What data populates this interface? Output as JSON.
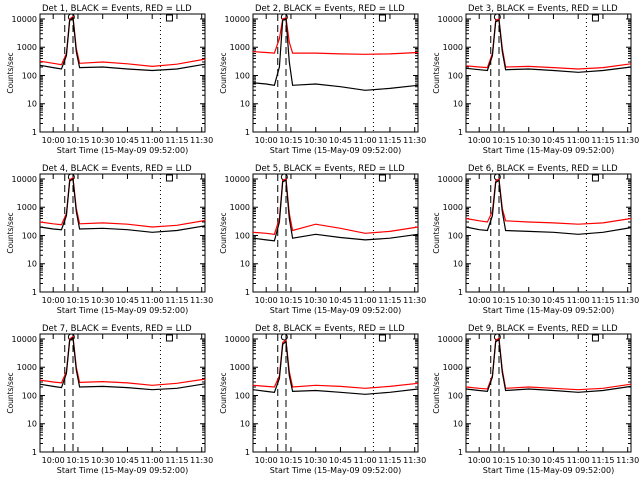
{
  "chart_data": [
    {
      "type": "line",
      "title": "Det 1, BLACK = Events, RED = LLD",
      "xlabel": "Start Time (15-May-09 09:52:00)",
      "ylabel": "Counts/sec",
      "xlim": [
        "09:52",
        "11:32"
      ],
      "ylim": [
        1,
        15000
      ],
      "yscale": "log",
      "x_ticks": [
        "10:00",
        "10:15",
        "10:30",
        "10:45",
        "11:00",
        "11:15",
        "11:30"
      ],
      "y_ticks": [
        "1",
        "10",
        "100",
        "1000",
        "10000"
      ],
      "vlines": {
        "dashed": [
          "10:07",
          "10:12"
        ],
        "dotted": [
          "11:05"
        ]
      },
      "series": [
        {
          "name": "RED = LLD",
          "color": "#ff0000",
          "x": [
            "09:52",
            "10:00",
            "10:05",
            "10:08",
            "10:10",
            "10:12",
            "10:14",
            "10:16",
            "10:30",
            "10:45",
            "11:00",
            "11:15",
            "11:32"
          ],
          "values": [
            320,
            270,
            240,
            600,
            10000,
            12000,
            900,
            270,
            300,
            260,
            210,
            250,
            380
          ]
        },
        {
          "name": "BLACK = Events",
          "color": "#000000",
          "x": [
            "09:52",
            "10:00",
            "10:05",
            "10:08",
            "10:10",
            "10:12",
            "10:14",
            "10:16",
            "10:30",
            "10:45",
            "11:00",
            "11:15",
            "11:32"
          ],
          "values": [
            230,
            190,
            170,
            500,
            9000,
            11000,
            700,
            190,
            200,
            170,
            150,
            170,
            250
          ]
        }
      ]
    },
    {
      "type": "line",
      "title": "Det 2, BLACK = Events, RED = LLD",
      "xlabel": "Start Time (15-May-09 09:52:00)",
      "ylabel": "Counts/sec",
      "xlim": [
        "09:52",
        "11:32"
      ],
      "ylim": [
        1,
        15000
      ],
      "yscale": "log",
      "x_ticks": [
        "10:00",
        "10:15",
        "10:30",
        "10:45",
        "11:00",
        "11:15",
        "11:30"
      ],
      "y_ticks": [
        "1",
        "10",
        "100",
        "1000",
        "10000"
      ],
      "vlines": {
        "dashed": [
          "10:07",
          "10:12"
        ],
        "dotted": [
          "11:05"
        ]
      },
      "series": [
        {
          "name": "RED = LLD",
          "color": "#ff0000",
          "x": [
            "09:52",
            "10:00",
            "10:05",
            "10:08",
            "10:10",
            "10:12",
            "10:14",
            "10:16",
            "10:30",
            "10:45",
            "11:00",
            "11:15",
            "11:32"
          ],
          "values": [
            700,
            650,
            620,
            2000,
            10000,
            11000,
            1500,
            620,
            620,
            580,
            560,
            580,
            650
          ]
        },
        {
          "name": "BLACK = Events",
          "color": "#000000",
          "x": [
            "09:52",
            "10:00",
            "10:05",
            "10:08",
            "10:10",
            "10:12",
            "10:14",
            "10:16",
            "10:30",
            "10:45",
            "11:00",
            "11:15",
            "11:32"
          ],
          "values": [
            55,
            50,
            45,
            200,
            9000,
            10000,
            300,
            45,
            50,
            40,
            30,
            35,
            45
          ]
        }
      ]
    },
    {
      "type": "line",
      "title": "Det 3, BLACK = Events, RED = LLD",
      "xlabel": "Start Time (15-May-09 09:52:00)",
      "ylabel": "Counts/sec",
      "xlim": [
        "09:52",
        "11:32"
      ],
      "ylim": [
        1,
        15000
      ],
      "yscale": "log",
      "x_ticks": [
        "10:00",
        "10:15",
        "10:30",
        "10:45",
        "11:00",
        "11:15",
        "11:30"
      ],
      "y_ticks": [
        "1",
        "10",
        "100",
        "1000",
        "10000"
      ],
      "vlines": {
        "dashed": [
          "10:07",
          "10:12"
        ],
        "dotted": [
          "11:05"
        ]
      },
      "series": [
        {
          "name": "RED = LLD",
          "color": "#ff0000",
          "x": [
            "09:52",
            "10:00",
            "10:05",
            "10:08",
            "10:10",
            "10:12",
            "10:14",
            "10:16",
            "10:30",
            "10:45",
            "11:00",
            "11:15",
            "11:32"
          ],
          "values": [
            220,
            200,
            190,
            600,
            9000,
            10000,
            900,
            200,
            210,
            190,
            170,
            190,
            260
          ]
        },
        {
          "name": "BLACK = Events",
          "color": "#000000",
          "x": [
            "09:52",
            "10:00",
            "10:05",
            "10:08",
            "10:10",
            "10:12",
            "10:14",
            "10:16",
            "10:30",
            "10:45",
            "11:00",
            "11:15",
            "11:32"
          ],
          "values": [
            180,
            160,
            150,
            500,
            8000,
            9000,
            700,
            160,
            170,
            150,
            130,
            150,
            200
          ]
        }
      ]
    },
    {
      "type": "line",
      "title": "Det 4, BLACK = Events, RED = LLD",
      "xlabel": "Start Time (15-May-09 09:52:00)",
      "ylabel": "Counts/sec",
      "xlim": [
        "09:52",
        "11:32"
      ],
      "ylim": [
        1,
        15000
      ],
      "yscale": "log",
      "x_ticks": [
        "10:00",
        "10:15",
        "10:30",
        "10:45",
        "11:00",
        "11:15",
        "11:30"
      ],
      "y_ticks": [
        "1",
        "10",
        "100",
        "1000",
        "10000"
      ],
      "vlines": {
        "dashed": [
          "10:07",
          "10:12"
        ],
        "dotted": [
          "11:05"
        ]
      },
      "series": [
        {
          "name": "RED = LLD",
          "color": "#ff0000",
          "x": [
            "09:52",
            "10:00",
            "10:05",
            "10:08",
            "10:10",
            "10:12",
            "10:14",
            "10:16",
            "10:30",
            "10:45",
            "11:00",
            "11:15",
            "11:32"
          ],
          "values": [
            300,
            260,
            240,
            600,
            9500,
            11000,
            900,
            260,
            280,
            250,
            200,
            230,
            340
          ]
        },
        {
          "name": "BLACK = Events",
          "color": "#000000",
          "x": [
            "09:52",
            "10:00",
            "10:05",
            "10:08",
            "10:10",
            "10:12",
            "10:14",
            "10:16",
            "10:30",
            "10:45",
            "11:00",
            "11:15",
            "11:32"
          ],
          "values": [
            200,
            170,
            160,
            500,
            8500,
            10000,
            700,
            170,
            180,
            160,
            130,
            150,
            220
          ]
        }
      ]
    },
    {
      "type": "line",
      "title": "Det 5, BLACK = Events, RED = LLD",
      "xlabel": "Start Time (15-May-09 09:52:00)",
      "ylabel": "Counts/sec",
      "xlim": [
        "09:52",
        "11:32"
      ],
      "ylim": [
        1,
        15000
      ],
      "yscale": "log",
      "x_ticks": [
        "10:00",
        "10:15",
        "10:30",
        "10:45",
        "11:00",
        "11:15",
        "11:30"
      ],
      "y_ticks": [
        "1",
        "10",
        "100",
        "1000",
        "10000"
      ],
      "vlines": {
        "dashed": [
          "10:07",
          "10:12"
        ],
        "dotted": [
          "11:05"
        ]
      },
      "series": [
        {
          "name": "RED = LLD",
          "color": "#ff0000",
          "x": [
            "09:52",
            "10:00",
            "10:05",
            "10:08",
            "10:10",
            "10:12",
            "10:14",
            "10:16",
            "10:30",
            "10:45",
            "11:00",
            "11:15",
            "11:32"
          ],
          "values": [
            130,
            120,
            110,
            400,
            9000,
            10000,
            600,
            150,
            250,
            180,
            120,
            140,
            200
          ]
        },
        {
          "name": "BLACK = Events",
          "color": "#000000",
          "x": [
            "09:52",
            "10:00",
            "10:05",
            "10:08",
            "10:10",
            "10:12",
            "10:14",
            "10:16",
            "10:30",
            "10:45",
            "11:00",
            "11:15",
            "11:32"
          ],
          "values": [
            80,
            70,
            65,
            300,
            8000,
            9000,
            400,
            80,
            110,
            85,
            70,
            80,
            110
          ]
        }
      ]
    },
    {
      "type": "line",
      "title": "Det 6, BLACK = Events, RED = LLD",
      "xlabel": "Start Time (15-May-09 09:52:00)",
      "ylabel": "Counts/sec",
      "xlim": [
        "09:52",
        "11:32"
      ],
      "ylim": [
        1,
        15000
      ],
      "yscale": "log",
      "x_ticks": [
        "10:00",
        "10:15",
        "10:30",
        "10:45",
        "11:00",
        "11:15",
        "11:30"
      ],
      "y_ticks": [
        "1",
        "10",
        "100",
        "1000",
        "10000"
      ],
      "vlines": {
        "dashed": [
          "10:07",
          "10:12"
        ],
        "dotted": [
          "11:05"
        ]
      },
      "series": [
        {
          "name": "RED = LLD",
          "color": "#ff0000",
          "x": [
            "09:52",
            "10:00",
            "10:05",
            "10:08",
            "10:10",
            "10:12",
            "10:14",
            "10:16",
            "10:30",
            "10:45",
            "11:00",
            "11:15",
            "11:32"
          ],
          "values": [
            400,
            330,
            300,
            700,
            8500,
            10000,
            900,
            330,
            300,
            280,
            250,
            280,
            400
          ]
        },
        {
          "name": "BLACK = Events",
          "color": "#000000",
          "x": [
            "09:52",
            "10:00",
            "10:05",
            "10:08",
            "10:10",
            "10:12",
            "10:14",
            "10:16",
            "10:30",
            "10:45",
            "11:00",
            "11:15",
            "11:32"
          ],
          "values": [
            200,
            160,
            150,
            500,
            7500,
            9000,
            700,
            150,
            140,
            130,
            110,
            130,
            190
          ]
        }
      ]
    },
    {
      "type": "line",
      "title": "Det 7, BLACK = Events, RED = LLD",
      "xlabel": "Start Time (15-May-09 09:52:00)",
      "ylabel": "Counts/sec",
      "xlim": [
        "09:52",
        "11:32"
      ],
      "ylim": [
        1,
        15000
      ],
      "yscale": "log",
      "x_ticks": [
        "10:00",
        "10:15",
        "10:30",
        "10:45",
        "11:00",
        "11:15",
        "11:30"
      ],
      "y_ticks": [
        "1",
        "10",
        "100",
        "1000",
        "10000"
      ],
      "vlines": {
        "dashed": [
          "10:07",
          "10:12"
        ],
        "dotted": [
          "11:05"
        ]
      },
      "series": [
        {
          "name": "RED = LLD",
          "color": "#ff0000",
          "x": [
            "09:52",
            "10:00",
            "10:05",
            "10:08",
            "10:10",
            "10:12",
            "10:14",
            "10:16",
            "10:30",
            "10:45",
            "11:00",
            "11:15",
            "11:32"
          ],
          "values": [
            350,
            300,
            280,
            700,
            10000,
            12000,
            1000,
            290,
            310,
            280,
            230,
            270,
            380
          ]
        },
        {
          "name": "BLACK = Events",
          "color": "#000000",
          "x": [
            "09:52",
            "10:00",
            "10:05",
            "10:08",
            "10:10",
            "10:12",
            "10:14",
            "10:16",
            "10:30",
            "10:45",
            "11:00",
            "11:15",
            "11:32"
          ],
          "values": [
            250,
            210,
            190,
            600,
            9000,
            11000,
            800,
            200,
            210,
            190,
            160,
            180,
            260
          ]
        }
      ]
    },
    {
      "type": "line",
      "title": "Det 8, BLACK = Events, RED = LLD",
      "xlabel": "Start Time (15-May-09 09:52:00)",
      "ylabel": "Counts/sec",
      "xlim": [
        "09:52",
        "11:32"
      ],
      "ylim": [
        1,
        15000
      ],
      "yscale": "log",
      "x_ticks": [
        "10:00",
        "10:15",
        "10:30",
        "10:45",
        "11:00",
        "11:15",
        "11:30"
      ],
      "y_ticks": [
        "1",
        "10",
        "100",
        "1000",
        "10000"
      ],
      "vlines": {
        "dashed": [
          "10:07",
          "10:12"
        ],
        "dotted": [
          "11:05"
        ]
      },
      "series": [
        {
          "name": "RED = LLD",
          "color": "#ff0000",
          "x": [
            "09:52",
            "10:00",
            "10:05",
            "10:08",
            "10:10",
            "10:12",
            "10:14",
            "10:16",
            "10:30",
            "10:45",
            "11:00",
            "11:15",
            "11:32"
          ],
          "values": [
            230,
            210,
            200,
            500,
            7500,
            9000,
            700,
            200,
            230,
            210,
            180,
            210,
            270
          ]
        },
        {
          "name": "BLACK = Events",
          "color": "#000000",
          "x": [
            "09:52",
            "10:00",
            "10:05",
            "10:08",
            "10:10",
            "10:12",
            "10:14",
            "10:16",
            "10:30",
            "10:45",
            "11:00",
            "11:15",
            "11:32"
          ],
          "values": [
            160,
            140,
            130,
            400,
            6500,
            8000,
            500,
            140,
            150,
            130,
            110,
            130,
            170
          ]
        }
      ]
    },
    {
      "type": "line",
      "title": "Det 9, BLACK = Events, RED = LLD",
      "xlabel": "Start Time (15-May-09 09:52:00)",
      "ylabel": "Counts/sec",
      "xlim": [
        "09:52",
        "11:32"
      ],
      "ylim": [
        1,
        15000
      ],
      "yscale": "log",
      "x_ticks": [
        "10:00",
        "10:15",
        "10:30",
        "10:45",
        "11:00",
        "11:15",
        "11:30"
      ],
      "y_ticks": [
        "1",
        "10",
        "100",
        "1000",
        "10000"
      ],
      "vlines": {
        "dashed": [
          "10:07",
          "10:12"
        ],
        "dotted": [
          "11:05"
        ]
      },
      "series": [
        {
          "name": "RED = LLD",
          "color": "#ff0000",
          "x": [
            "09:52",
            "10:00",
            "10:05",
            "10:08",
            "10:10",
            "10:12",
            "10:14",
            "10:16",
            "10:30",
            "10:45",
            "11:00",
            "11:15",
            "11:32"
          ],
          "values": [
            200,
            180,
            170,
            500,
            9000,
            10500,
            800,
            180,
            200,
            180,
            160,
            180,
            250
          ]
        },
        {
          "name": "BLACK = Events",
          "color": "#000000",
          "x": [
            "09:52",
            "10:00",
            "10:05",
            "10:08",
            "10:10",
            "10:12",
            "10:14",
            "10:16",
            "10:30",
            "10:45",
            "11:00",
            "11:15",
            "11:32"
          ],
          "values": [
            170,
            150,
            140,
            450,
            8000,
            9500,
            650,
            150,
            170,
            150,
            130,
            150,
            210
          ]
        }
      ]
    }
  ]
}
